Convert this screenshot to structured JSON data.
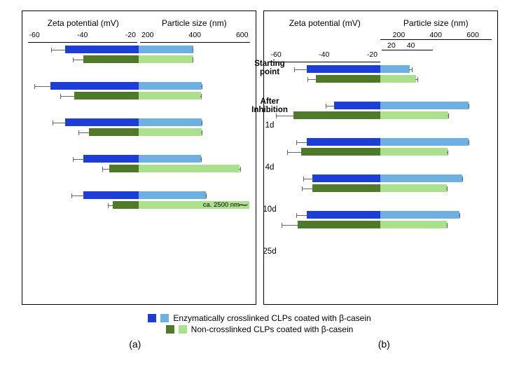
{
  "colors": {
    "blue_dark": "#1e3dd6",
    "blue_light": "#6fb0e3",
    "green_dark": "#4e7a2a",
    "green_light": "#abe08c",
    "err": "#777"
  },
  "axis": {
    "zeta_label": "Zeta potential (mV)",
    "size_label": "Particle size (nm)",
    "zeta_ticks": [
      "-60",
      "-40",
      "-20"
    ],
    "size_ticks": [
      "200",
      "400",
      "600"
    ],
    "zeta_max": 60,
    "size_max": 700,
    "nested_ticks": [
      "20",
      "40"
    ],
    "nested_max": 60
  },
  "center_labels": {
    "start1": "Starting",
    "start2": "point",
    "after1": "After",
    "after2": "Inhibition",
    "d1": "1d",
    "d4": "4d",
    "d10": "10d",
    "d25": "25d"
  },
  "panelA": {
    "rows": [
      {
        "zeta": [
          40,
          30
        ],
        "zeta_err": [
          8,
          6
        ],
        "size": [
          345,
          345
        ],
        "size_err": [
          5,
          5
        ]
      },
      {
        "zeta": [
          48,
          35
        ],
        "zeta_err": [
          9,
          8
        ],
        "size": [
          400,
          395
        ],
        "size_err": [
          6,
          6
        ]
      },
      {
        "zeta": [
          40,
          27
        ],
        "zeta_err": [
          7,
          6
        ],
        "size": [
          400,
          400
        ],
        "size_err": [
          6,
          6
        ]
      },
      {
        "zeta": [
          30,
          16
        ],
        "zeta_err": [
          6,
          4
        ],
        "size": [
          395,
          640
        ],
        "size_err": [
          10,
          10
        ]
      },
      {
        "zeta": [
          30,
          14
        ],
        "zeta_err": [
          7,
          3
        ],
        "size": [
          425,
          700
        ],
        "size_err": [
          8,
          0
        ]
      }
    ],
    "note2500": "ca. 2500 nm"
  },
  "panelB": {
    "use_nested": true,
    "rows": [
      {
        "zeta": [
          40,
          35
        ],
        "zeta_err": [
          7,
          5
        ],
        "size_nested": [
          35,
          42
        ],
        "size_nested_err": [
          4,
          3
        ]
      },
      {
        "zeta": [
          25,
          47
        ],
        "zeta_err": [
          5,
          10
        ],
        "size": [
          560,
          430
        ],
        "size_err": [
          8,
          8
        ]
      },
      {
        "zeta": [
          40,
          43
        ],
        "zeta_err": [
          6,
          8
        ],
        "size": [
          560,
          425
        ],
        "size_err": [
          8,
          8
        ]
      },
      {
        "zeta": [
          37,
          37
        ],
        "zeta_err": [
          5,
          6
        ],
        "size": [
          520,
          420
        ],
        "size_err": [
          8,
          8
        ]
      },
      {
        "zeta": [
          40,
          45
        ],
        "zeta_err": [
          6,
          9
        ],
        "size": [
          500,
          420
        ],
        "size_err": [
          10,
          8
        ]
      }
    ]
  },
  "legend": {
    "enz": "Enzymatically crosslinked CLPs coated with β-casein",
    "non": "Non-crosslinked CLPs coated with β-casein"
  },
  "sublabels": {
    "a": "(a)",
    "b": "(b)"
  }
}
